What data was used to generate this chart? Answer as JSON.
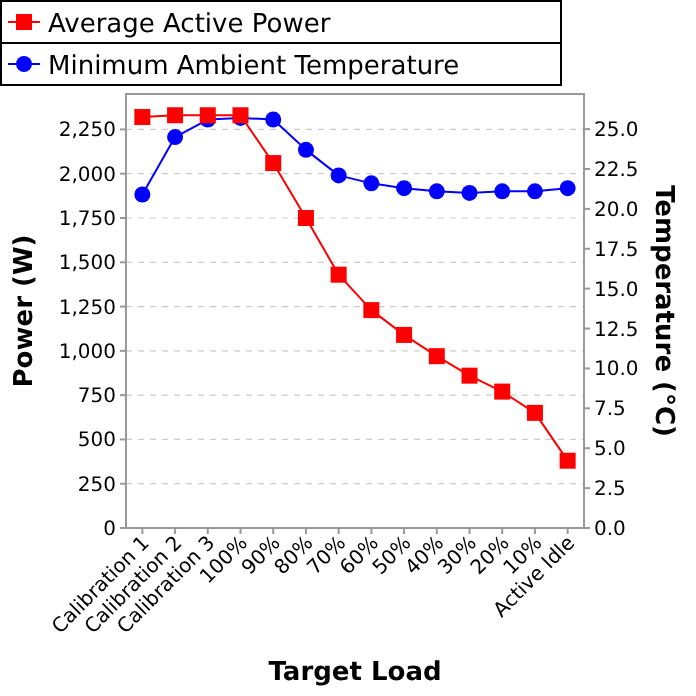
{
  "chart_data": {
    "type": "line",
    "xlabel": "Target Load",
    "ylabel": "Power (W)",
    "y2label": "Temperature  (°C)",
    "categories": [
      "Calibration 1",
      "Calibration 2",
      "Calibration 3",
      "100%",
      "90%",
      "80%",
      "70%",
      "60%",
      "50%",
      "40%",
      "30%",
      "20%",
      "10%",
      "Active Idle"
    ],
    "series": [
      {
        "name": "Average Active Power",
        "color": "#ff0000",
        "marker": "square",
        "values": [
          2320,
          2330,
          2330,
          2330,
          2060,
          1750,
          1430,
          1230,
          1090,
          970,
          860,
          770,
          650,
          380
        ]
      },
      {
        "name": "Minimum Ambient Temperature",
        "color": "#0000ff",
        "marker": "circle",
        "axis": "y2",
        "values": [
          20.9,
          24.5,
          25.6,
          25.7,
          25.6,
          23.7,
          22.1,
          21.6,
          21.3,
          21.1,
          21.0,
          21.1,
          21.1,
          21.3
        ]
      }
    ],
    "ylim": [
      0,
      2450
    ],
    "yticks": [
      0,
      {
        "value": 250,
        "label": "250"
      },
      {
        "value": 500,
        "label": "500"
      },
      {
        "value": 750,
        "label": "750"
      },
      {
        "value": 1000,
        "label": "1,000"
      },
      {
        "value": 1250,
        "label": "1,250"
      },
      {
        "value": 1500,
        "label": "1,500"
      },
      {
        "value": 1750,
        "label": "1,750"
      },
      {
        "value": 2000,
        "label": "2,000"
      },
      {
        "value": 2250,
        "label": "2,250"
      }
    ],
    "y2lim": [
      0,
      27.2
    ],
    "y2ticks": [
      {
        "value": 0,
        "label": "0.0"
      },
      {
        "value": 2.5,
        "label": "2.5"
      },
      {
        "value": 5,
        "label": "5.0"
      },
      {
        "value": 7.5,
        "label": "7.5"
      },
      {
        "value": 10,
        "label": "10.0"
      },
      {
        "value": 12.5,
        "label": "12.5"
      },
      {
        "value": 15,
        "label": "15.0"
      },
      {
        "value": 17.5,
        "label": "17.5"
      },
      {
        "value": 20,
        "label": "20.0"
      },
      {
        "value": 22.5,
        "label": "22.5"
      },
      {
        "value": 25,
        "label": "25.0"
      }
    ],
    "grid": "y",
    "legend": "top"
  }
}
